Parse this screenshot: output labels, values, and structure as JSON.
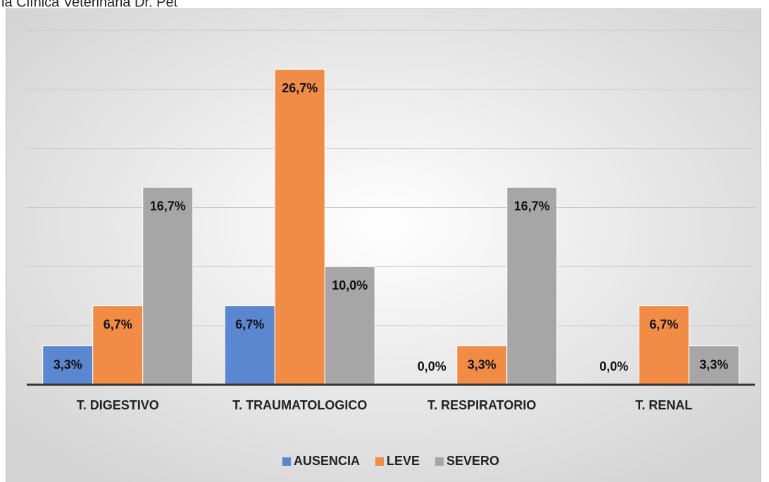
{
  "chart_data": {
    "type": "bar",
    "title": "la Clínica Veterinaria Dr. Pet",
    "categories": [
      "T. DIGESTIVO",
      "T. TRAUMATOLOGICO",
      "T. RESPIRATORIO",
      "T. RENAL"
    ],
    "series": [
      {
        "name": "AUSENCIA",
        "color": "#5b86d0",
        "values": [
          3.3,
          6.7,
          0.0,
          0.0
        ],
        "value_labels": [
          "3,3%",
          "6,7%",
          "0,0%",
          "0,0%"
        ]
      },
      {
        "name": "LEVE",
        "color": "#f08c46",
        "values": [
          6.7,
          26.7,
          3.3,
          6.7
        ],
        "value_labels": [
          "6,7%",
          "26,7%",
          "3,3%",
          "6,7%"
        ]
      },
      {
        "name": "SEVERO",
        "color": "#a6a6a6",
        "values": [
          16.7,
          10.0,
          16.7,
          3.3
        ],
        "value_labels": [
          "16,7%",
          "10,0%",
          "16,7%",
          "3,3%"
        ]
      }
    ],
    "ylim": [
      0,
      30
    ],
    "yticks": [
      0,
      5,
      10,
      15,
      20,
      25,
      30
    ],
    "grid": true,
    "legend": "bottom"
  }
}
